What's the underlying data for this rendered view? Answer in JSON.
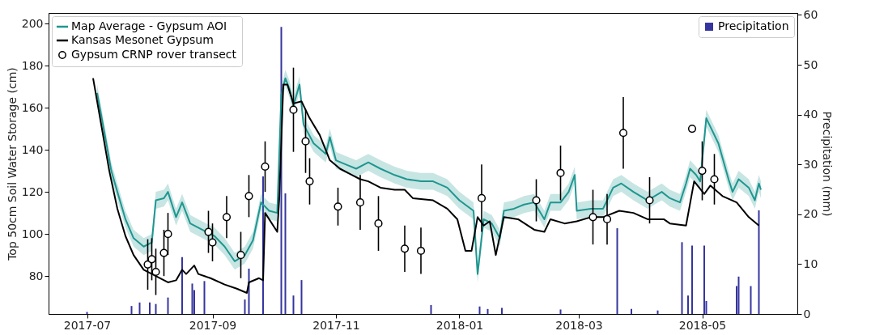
{
  "chart_data": {
    "type": "line",
    "ylabel": "Top 50cm Soil Water Storage (cm)",
    "y2label": "Precipitation (mm)",
    "xlim": [
      "2017-06-14",
      "2018-06-15"
    ],
    "xticks": [
      "2017-07",
      "2017-09",
      "2017-11",
      "2018-01",
      "2018-03",
      "2018-05"
    ],
    "ylim": [
      62,
      205
    ],
    "yticks": [
      80,
      100,
      120,
      140,
      160,
      180,
      200
    ],
    "y2lim": [
      0,
      60.4
    ],
    "y2ticks": [
      0,
      10,
      20,
      30,
      40,
      50,
      60
    ],
    "legend": "top left",
    "series": [
      {
        "name": "Map Average - Gypsum AOI",
        "type": "line",
        "color": "#1f9690",
        "x": [
          "2017-07-06",
          "2017-07-10",
          "2017-07-13",
          "2017-07-16",
          "2017-07-20",
          "2017-07-24",
          "2017-07-29",
          "2017-08-02",
          "2017-08-04",
          "2017-08-08",
          "2017-08-10",
          "2017-08-14",
          "2017-08-17",
          "2017-08-21",
          "2017-08-25",
          "2017-08-29",
          "2017-09-02",
          "2017-09-07",
          "2017-09-12",
          "2017-09-17",
          "2017-09-21",
          "2017-09-25",
          "2017-09-29",
          "2017-10-03",
          "2017-10-05",
          "2017-10-07",
          "2017-10-09",
          "2017-10-11",
          "2017-10-14",
          "2017-10-16",
          "2017-10-21",
          "2017-10-27",
          "2017-10-29",
          "2017-11-01",
          "2017-11-06",
          "2017-11-11",
          "2017-11-17",
          "2017-11-23",
          "2017-11-30",
          "2017-12-06",
          "2017-12-13",
          "2017-12-19",
          "2017-12-26",
          "2018-01-01",
          "2018-01-08",
          "2018-01-10",
          "2018-01-13",
          "2018-01-17",
          "2018-01-21",
          "2018-01-23",
          "2018-01-28",
          "2018-02-02",
          "2018-02-07",
          "2018-02-12",
          "2018-02-15",
          "2018-02-20",
          "2018-02-24",
          "2018-02-27",
          "2018-02-28",
          "2018-03-07",
          "2018-03-13",
          "2018-03-18",
          "2018-03-22",
          "2018-03-28",
          "2018-04-04",
          "2018-04-11",
          "2018-04-15",
          "2018-04-20",
          "2018-04-23",
          "2018-04-25",
          "2018-04-28",
          "2018-04-30",
          "2018-05-03",
          "2018-05-09",
          "2018-05-14",
          "2018-05-16",
          "2018-05-19",
          "2018-05-24",
          "2018-05-27",
          "2018-05-29",
          "2018-05-30"
        ],
        "values": [
          167,
          146,
          130,
          120,
          107,
          98,
          94,
          96,
          116,
          117,
          120,
          108,
          115,
          105,
          103,
          101,
          99,
          94,
          87,
          90,
          97,
          115,
          111,
          110,
          166,
          174,
          169,
          161,
          171,
          152,
          143,
          138,
          146,
          135,
          133,
          131,
          134,
          131,
          128,
          126,
          125,
          125,
          122,
          116,
          111,
          81,
          107,
          105,
          98,
          111,
          112,
          114,
          115,
          107,
          115,
          115,
          120,
          128,
          111,
          112,
          112,
          122,
          124,
          120,
          116,
          120,
          117,
          115,
          124,
          131,
          128,
          125,
          155,
          143,
          126,
          120,
          126,
          122,
          116,
          124,
          121
        ],
        "lower": [
          163,
          142,
          126,
          116,
          103,
          94,
          90,
          92,
          112,
          113,
          116,
          104,
          111,
          101,
          99,
          97,
          95,
          90,
          83,
          86,
          93,
          111,
          107,
          106,
          162,
          170,
          165,
          157,
          167,
          148,
          139,
          134,
          142,
          131,
          129,
          127,
          130,
          127,
          124,
          122,
          121,
          121,
          118,
          112,
          107,
          77,
          103,
          101,
          94,
          107,
          108,
          110,
          111,
          103,
          111,
          111,
          116,
          124,
          107,
          108,
          108,
          118,
          120,
          116,
          112,
          116,
          113,
          111,
          120,
          127,
          124,
          121,
          151,
          139,
          122,
          116,
          122,
          118,
          112,
          120,
          117
        ],
        "upper": [
          171,
          150,
          134,
          124,
          111,
          102,
          98,
          100,
          120,
          121,
          124,
          112,
          119,
          109,
          107,
          105,
          103,
          98,
          91,
          94,
          101,
          119,
          115,
          114,
          170,
          178,
          173,
          165,
          175,
          156,
          147,
          142,
          150,
          139,
          137,
          135,
          138,
          135,
          132,
          130,
          129,
          129,
          126,
          120,
          115,
          85,
          111,
          109,
          102,
          115,
          116,
          118,
          119,
          111,
          119,
          119,
          124,
          132,
          115,
          116,
          116,
          126,
          128,
          124,
          120,
          124,
          121,
          119,
          128,
          135,
          132,
          129,
          159,
          147,
          130,
          124,
          130,
          126,
          120,
          128,
          125
        ]
      },
      {
        "name": "Kansas Mesonet Gypsum",
        "type": "line",
        "color": "#000000",
        "x": [
          "2017-07-04",
          "2017-07-08",
          "2017-07-12",
          "2017-07-16",
          "2017-07-20",
          "2017-07-24",
          "2017-07-29",
          "2017-08-04",
          "2017-08-10",
          "2017-08-14",
          "2017-08-17",
          "2017-08-19",
          "2017-08-23",
          "2017-08-25",
          "2017-08-31",
          "2017-09-07",
          "2017-09-13",
          "2017-09-18",
          "2017-09-19",
          "2017-09-24",
          "2017-09-26",
          "2017-09-27",
          "2017-10-03",
          "2017-10-04",
          "2017-10-06",
          "2017-10-08",
          "2017-10-11",
          "2017-10-15",
          "2017-10-19",
          "2017-10-24",
          "2017-10-29",
          "2017-11-03",
          "2017-11-09",
          "2017-11-13",
          "2017-11-17",
          "2017-11-23",
          "2017-11-30",
          "2017-12-05",
          "2017-12-09",
          "2017-12-19",
          "2017-12-26",
          "2017-12-31",
          "2018-01-04",
          "2018-01-07",
          "2018-01-10",
          "2018-01-13",
          "2018-01-16",
          "2018-01-19",
          "2018-01-23",
          "2018-01-30",
          "2018-02-07",
          "2018-02-12",
          "2018-02-15",
          "2018-02-22",
          "2018-02-28",
          "2018-03-07",
          "2018-03-13",
          "2018-03-21",
          "2018-03-28",
          "2018-04-04",
          "2018-04-12",
          "2018-04-15",
          "2018-04-23",
          "2018-04-27",
          "2018-05-02",
          "2018-05-05",
          "2018-05-11",
          "2018-05-18",
          "2018-05-24",
          "2018-05-29"
        ],
        "values": [
          174,
          152,
          130,
          112,
          99,
          90,
          83,
          80,
          77,
          78,
          83,
          81,
          85,
          81,
          79,
          76,
          74,
          72,
          77,
          79,
          78,
          110,
          101,
          117,
          171,
          171,
          162,
          163,
          155,
          147,
          135,
          131,
          128,
          126,
          125,
          122,
          121,
          121,
          117,
          116,
          112,
          107,
          92,
          92,
          108,
          104,
          106,
          90,
          108,
          107,
          102,
          101,
          107,
          105,
          106,
          108,
          108,
          111,
          110,
          107,
          107,
          105,
          104,
          125,
          119,
          123,
          118,
          115,
          108,
          104
        ]
      },
      {
        "name": "Gypsum CRNP rover transect",
        "type": "scatter",
        "color": "#000000",
        "marker": "circle",
        "x": [
          "2017-07-31",
          "2017-08-02",
          "2017-08-04",
          "2017-08-08",
          "2017-08-10",
          "2017-08-30",
          "2017-09-01",
          "2017-09-08",
          "2017-09-15",
          "2017-09-19",
          "2017-09-27",
          "2017-10-11",
          "2017-10-17",
          "2017-10-19",
          "2017-11-02",
          "2017-11-13",
          "2017-11-22",
          "2017-12-05",
          "2017-12-13",
          "2018-01-12",
          "2018-02-08",
          "2018-02-20",
          "2018-03-08",
          "2018-03-15",
          "2018-03-23",
          "2018-04-05",
          "2018-04-26",
          "2018-05-01",
          "2018-05-07"
        ],
        "values": [
          85.5,
          88,
          82,
          91,
          100,
          101,
          96,
          108,
          90,
          118,
          132,
          159,
          144,
          125,
          113,
          115,
          105,
          93,
          92,
          117,
          116,
          129,
          108,
          107,
          148,
          116,
          150,
          130,
          126
        ],
        "errors": [
          12,
          10,
          11,
          11,
          10,
          10,
          9,
          10,
          11,
          10,
          12,
          20,
          15,
          11,
          9,
          13,
          13,
          11,
          11,
          16,
          10,
          13,
          13,
          12,
          17,
          11,
          null,
          14,
          12
        ]
      },
      {
        "name": "Precipitation",
        "type": "bar",
        "axis": "y2",
        "color": "#35359f",
        "x": [
          "2017-07-01",
          "2017-07-23",
          "2017-07-27",
          "2017-08-01",
          "2017-08-04",
          "2017-08-10",
          "2017-08-17",
          "2017-08-22",
          "2017-08-23",
          "2017-08-28",
          "2017-09-17",
          "2017-09-19",
          "2017-09-26",
          "2017-10-05",
          "2017-10-07",
          "2017-10-11",
          "2017-10-15",
          "2017-12-18",
          "2018-01-11",
          "2018-01-15",
          "2018-01-22",
          "2018-02-20",
          "2018-03-20",
          "2018-03-27",
          "2018-04-09",
          "2018-04-21",
          "2018-04-24",
          "2018-04-26",
          "2018-05-02",
          "2018-05-03",
          "2018-05-18",
          "2018-05-19",
          "2018-05-25",
          "2018-05-29"
        ],
        "values": [
          0.4,
          1.6,
          2.3,
          2.3,
          2,
          3.3,
          11.4,
          6.1,
          4.8,
          6.6,
          2.9,
          9.1,
          27.6,
          57.6,
          24.2,
          3.7,
          6.8,
          1.8,
          1.5,
          1,
          1.2,
          0.9,
          17.2,
          1,
          0.7,
          14.4,
          3.7,
          13.7,
          13.7,
          2.6,
          5.6,
          7.5,
          5.6,
          20.8
        ]
      }
    ]
  }
}
